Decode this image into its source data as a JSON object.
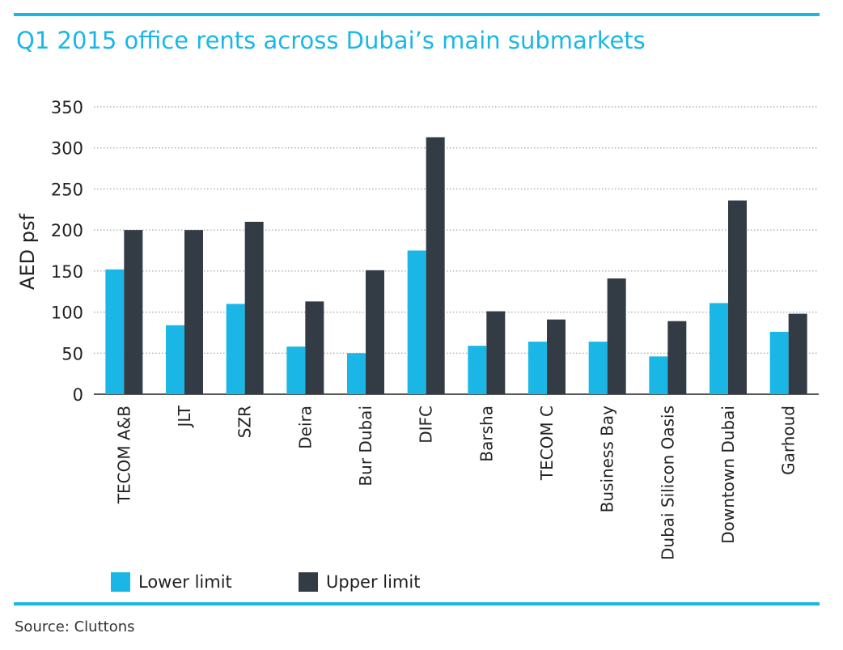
{
  "title": "Q1 2015 office rents across Dubai’s main submarkets",
  "source": "Source: Cluttons",
  "colors": {
    "accent": "#1ab7e6",
    "lower": "#1ab7e6",
    "upper": "#333b44"
  },
  "chart_data": {
    "type": "bar",
    "title": "Q1 2015 office rents across Dubai’s main submarkets",
    "xlabel": "",
    "ylabel": "AED psf",
    "ylim": [
      0,
      350
    ],
    "yticks": [
      0,
      50,
      100,
      150,
      200,
      250,
      300,
      350
    ],
    "grid": true,
    "legend_position": "bottom-left",
    "categories": [
      "TECOM A&B",
      "JLT",
      "SZR",
      "Deira",
      "Bur Dubai",
      "DIFC",
      "Barsha",
      "TECOM C",
      "Business Bay",
      "Dubai Silicon Oasis",
      "Downtown Dubai",
      "Garhoud"
    ],
    "series": [
      {
        "name": "Lower limit",
        "color": "#1ab7e6",
        "values": [
          152,
          84,
          110,
          58,
          50,
          175,
          59,
          64,
          64,
          46,
          111,
          76
        ]
      },
      {
        "name": "Upper limit",
        "color": "#333b44",
        "values": [
          200,
          200,
          210,
          113,
          151,
          313,
          101,
          91,
          141,
          89,
          236,
          98
        ]
      }
    ]
  }
}
